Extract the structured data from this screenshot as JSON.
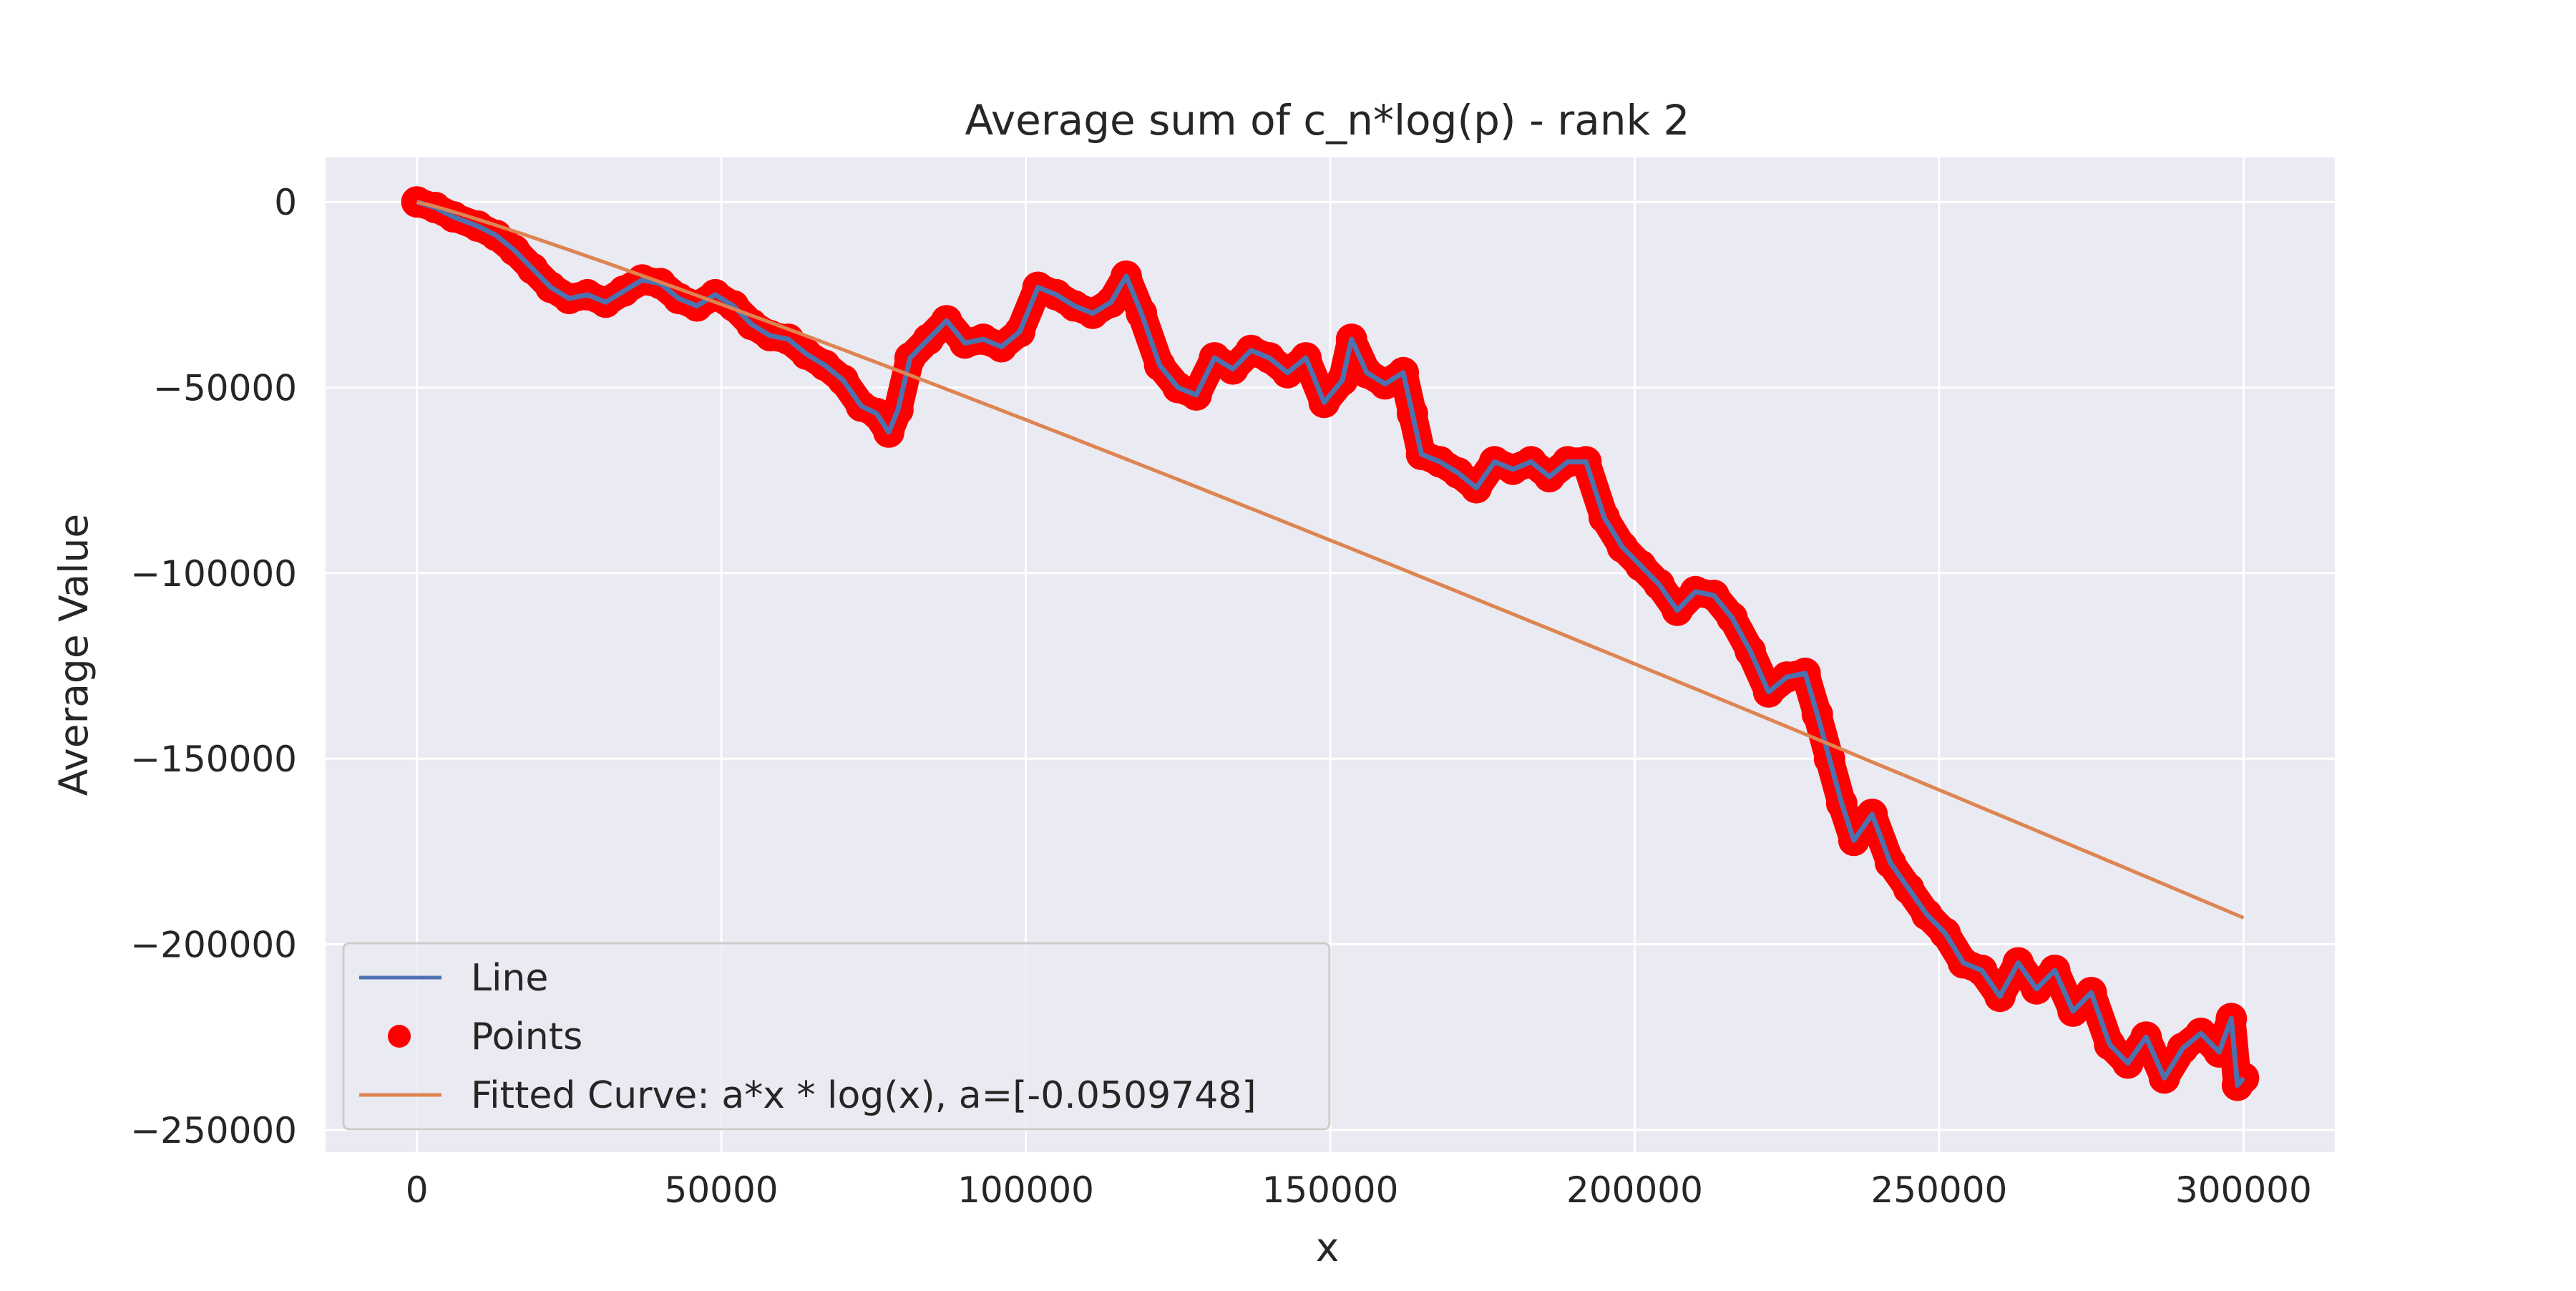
{
  "chart_data": {
    "type": "line",
    "title": "Average sum of c_n*log(p) - rank 2",
    "xlabel": "x",
    "ylabel": "Average Value",
    "xlim": [
      -15000,
      315000
    ],
    "ylim": [
      -256000,
      12000
    ],
    "x_ticks": [
      0,
      50000,
      100000,
      150000,
      200000,
      250000,
      300000
    ],
    "x_tick_labels": [
      "0",
      "50000",
      "100000",
      "150000",
      "200000",
      "250000",
      "300000"
    ],
    "y_ticks": [
      0,
      -50000,
      -100000,
      -150000,
      -200000,
      -250000
    ],
    "y_tick_labels": [
      "0",
      "−50000",
      "−100000",
      "−150000",
      "−200000",
      "−250000"
    ],
    "grid": true,
    "legend_position": "lower-left",
    "colors": {
      "background": "#eaeaf2",
      "grid": "#ffffff",
      "line": "#4c72b0",
      "points": "#ff0000",
      "fit": "#dd8452"
    },
    "series": [
      {
        "name": "Line",
        "kind": "line",
        "x": [
          0,
          3000,
          6000,
          10000,
          13000,
          16000,
          19000,
          22000,
          25000,
          28000,
          31000,
          34000,
          37000,
          40000,
          43000,
          46000,
          49000,
          52000,
          55000,
          58000,
          61000,
          64000,
          67000,
          70000,
          73000,
          75500,
          77500,
          79000,
          81000,
          84000,
          87000,
          90000,
          93000,
          96000,
          99000,
          102000,
          105000,
          108000,
          111000,
          114000,
          116500,
          119000,
          122000,
          125000,
          128000,
          131000,
          134000,
          137000,
          140000,
          143000,
          146000,
          149000,
          152000,
          153500,
          156000,
          159000,
          162000,
          163500,
          165000,
          168000,
          171000,
          174000,
          177000,
          180000,
          183000,
          186000,
          189000,
          192000,
          195000,
          198000,
          201000,
          204000,
          207000,
          210000,
          213000,
          216000,
          219000,
          222000,
          225000,
          228000,
          230000,
          232000,
          234000,
          236000,
          239000,
          242000,
          245000,
          248000,
          251000,
          254000,
          257000,
          260000,
          263000,
          266000,
          269000,
          272000,
          275000,
          278000,
          281000,
          284000,
          287000,
          290000,
          293000,
          296000,
          298000,
          299000,
          300000
        ],
        "y": [
          0,
          -1500,
          -4000,
          -6500,
          -9000,
          -13000,
          -18000,
          -23000,
          -26000,
          -25000,
          -27000,
          -24000,
          -21000,
          -22000,
          -26000,
          -28000,
          -25000,
          -28000,
          -33000,
          -36000,
          -37000,
          -41000,
          -44000,
          -48000,
          -55000,
          -57000,
          -62000,
          -56000,
          -42000,
          -37000,
          -32000,
          -38000,
          -37000,
          -39000,
          -35000,
          -23000,
          -25000,
          -28000,
          -30000,
          -27000,
          -20000,
          -30000,
          -44000,
          -50000,
          -52000,
          -42000,
          -45000,
          -40000,
          -42000,
          -46000,
          -42000,
          -54000,
          -48000,
          -37000,
          -46000,
          -49000,
          -46000,
          -57000,
          -68000,
          -70000,
          -73000,
          -77000,
          -70000,
          -72000,
          -70000,
          -74000,
          -70000,
          -70000,
          -85000,
          -93000,
          -98000,
          -103000,
          -110000,
          -105000,
          -106000,
          -112000,
          -121000,
          -132000,
          -128000,
          -127000,
          -138000,
          -150000,
          -162000,
          -172000,
          -165000,
          -178000,
          -185000,
          -192000,
          -197000,
          -205000,
          -207000,
          -214000,
          -205000,
          -212000,
          -207000,
          -218000,
          -213000,
          -227000,
          -232000,
          -225000,
          -236000,
          -228000,
          -224000,
          -229000,
          -220000,
          -238000,
          -236000
        ]
      },
      {
        "name": "Points",
        "kind": "scatter",
        "same_as": "Line"
      },
      {
        "name": "Fitted Curve: a*x * log(x), a=[-0.0509748]",
        "kind": "line",
        "a": -0.0509748,
        "x_range": [
          1,
          300000
        ]
      }
    ]
  }
}
